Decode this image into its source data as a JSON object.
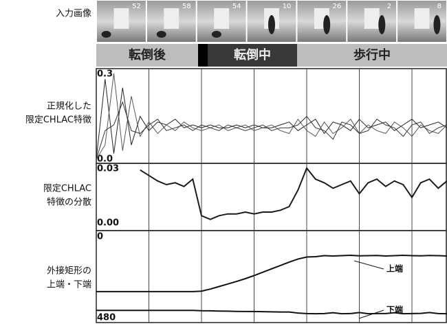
{
  "row_labels": [
    [
      "入力画像"
    ],
    [
      "正規化した",
      "限定CHLAC特徴"
    ],
    [
      "限定CHLAC",
      "特徴の分散"
    ],
    [
      "外接矩形の",
      "上端・下端"
    ]
  ],
  "frames": [
    "52",
    "58",
    "54",
    "10",
    "26",
    "2",
    "8"
  ],
  "phases": [
    "転倒後",
    "転倒中",
    "歩行中"
  ],
  "chart_data": [
    {
      "type": "line",
      "xlim": [
        0,
        40
      ],
      "xticks": [
        6,
        12,
        18,
        24,
        30,
        36
      ],
      "ylim": [
        0,
        0.3
      ],
      "yticks": [
        {
          "value": 0,
          "label": "0.0"
        },
        0.3
      ],
      "series": [
        {
          "color": "#222222",
          "values": [
            0.0,
            0.28,
            0.02,
            0.25,
            0.05,
            0.15,
            0.1,
            0.13,
            0.12,
            0.14,
            0.11,
            0.12,
            0.11,
            0.12,
            0.11,
            0.11,
            0.12,
            0.11,
            0.12,
            0.11,
            0.11,
            0.12,
            0.13,
            0.1,
            0.12,
            0.14,
            0.09,
            0.13,
            0.12,
            0.1,
            0.14,
            0.11,
            0.12,
            0.13,
            0.1,
            0.12,
            0.14,
            0.11,
            0.12,
            0.13,
            0.11
          ]
        },
        {
          "color": "#555555",
          "values": [
            0.0,
            0.05,
            0.3,
            0.03,
            0.22,
            0.08,
            0.13,
            0.09,
            0.12,
            0.1,
            0.13,
            0.11,
            0.1,
            0.11,
            0.12,
            0.1,
            0.11,
            0.12,
            0.1,
            0.11,
            0.12,
            0.1,
            0.09,
            0.14,
            0.1,
            0.08,
            0.13,
            0.09,
            0.11,
            0.14,
            0.09,
            0.12,
            0.1,
            0.09,
            0.13,
            0.11,
            0.08,
            0.12,
            0.1,
            0.09,
            0.12
          ]
        },
        {
          "color": "#333333",
          "values": [
            0.0,
            0.1,
            0.12,
            0.2,
            0.1,
            0.09,
            0.12,
            0.14,
            0.1,
            0.11,
            0.12,
            0.1,
            0.12,
            0.11,
            0.1,
            0.12,
            0.11,
            0.1,
            0.11,
            0.12,
            0.1,
            0.11,
            0.11,
            0.12,
            0.15,
            0.11,
            0.1,
            0.07,
            0.13,
            0.12,
            0.09,
            0.1,
            0.14,
            0.12,
            0.11,
            0.08,
            0.12,
            0.13,
            0.09,
            0.11,
            0.12
          ]
        }
      ]
    },
    {
      "type": "line",
      "xlim": [
        0,
        40
      ],
      "xticks": [
        6,
        12,
        18,
        24,
        30,
        36
      ],
      "ylim": [
        0,
        0.03
      ],
      "yticks": [
        {
          "value": 0,
          "label": "0.00"
        },
        0.03
      ],
      "series": [
        {
          "color": "#1a1a1a",
          "values": [
            null,
            null,
            null,
            null,
            null,
            0.029,
            0.026,
            0.023,
            0.021,
            0.022,
            0.02,
            0.024,
            0.004,
            0.002,
            0.004,
            0.005,
            0.005,
            0.006,
            0.005,
            0.006,
            0.006,
            0.007,
            0.009,
            0.018,
            0.03,
            0.024,
            0.022,
            0.019,
            0.021,
            0.023,
            0.016,
            0.022,
            0.024,
            0.02,
            0.023,
            0.021,
            0.014,
            0.022,
            0.024,
            0.019,
            0.023
          ]
        }
      ]
    },
    {
      "type": "line",
      "xlim": [
        0,
        40
      ],
      "xticks": [
        6,
        12,
        18,
        24,
        30,
        36
      ],
      "ylim": [
        0,
        480
      ],
      "y_inverted": true,
      "yticks": [
        0,
        480
      ],
      "annotations": [
        "上端",
        "下端"
      ],
      "series": [
        {
          "color": "#111111",
          "values": [
            325,
            325,
            325,
            325,
            325,
            325,
            325,
            325,
            325,
            325,
            325,
            325,
            322,
            310,
            295,
            280,
            265,
            248,
            230,
            210,
            190,
            170,
            150,
            132,
            120,
            118,
            112,
            114,
            112,
            110,
            113,
            112,
            111,
            114,
            112,
            110,
            112,
            113,
            111,
            112,
            114
          ]
        },
        {
          "color": "#111111",
          "values": [
            436,
            436,
            436,
            436,
            436,
            436,
            436,
            436,
            436,
            436,
            436,
            436,
            438,
            439,
            440,
            441,
            442,
            443,
            443,
            444,
            445,
            446,
            446,
            452,
            455,
            456,
            455,
            450,
            456,
            455,
            449,
            456,
            455,
            455,
            450,
            456,
            455,
            454,
            449,
            455,
            456
          ]
        }
      ]
    }
  ]
}
